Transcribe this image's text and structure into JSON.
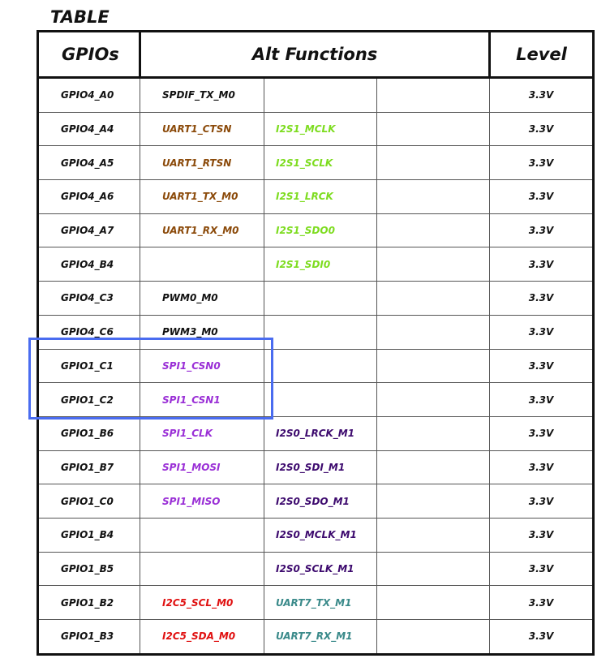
{
  "title": "TABLE",
  "table": {
    "header": [
      "GPIOs",
      "Alt Functions",
      "Level"
    ],
    "rows": [
      {
        "gpio": "GPIO4_A0",
        "alt": [
          {
            "text": "SPDIF_TX_M0",
            "color": "#111111"
          },
          null,
          null
        ],
        "level": "3.3V"
      },
      {
        "gpio": "GPIO4_A4",
        "alt": [
          {
            "text": "UART1_CTSN",
            "color": "#8b4a0a"
          },
          {
            "text": "I2S1_MCLK",
            "color": "#7ddc1f"
          },
          null
        ],
        "level": "3.3V"
      },
      {
        "gpio": "GPIO4_A5",
        "alt": [
          {
            "text": "UART1_RTSN",
            "color": "#8b4a0a"
          },
          {
            "text": "I2S1_SCLK",
            "color": "#7ddc1f"
          },
          null
        ],
        "level": "3.3V"
      },
      {
        "gpio": "GPIO4_A6",
        "alt": [
          {
            "text": "UART1_TX_M0",
            "color": "#8b4a0a"
          },
          {
            "text": "I2S1_LRCK",
            "color": "#7ddc1f"
          },
          null
        ],
        "level": "3.3V"
      },
      {
        "gpio": "GPIO4_A7",
        "alt": [
          {
            "text": "UART1_RX_M0",
            "color": "#8b4a0a"
          },
          {
            "text": "I2S1_SDO0",
            "color": "#7ddc1f"
          },
          null
        ],
        "level": "3.3V"
      },
      {
        "gpio": "GPIO4_B4",
        "alt": [
          null,
          {
            "text": "I2S1_SDI0",
            "color": "#7ddc1f"
          },
          null
        ],
        "level": "3.3V"
      },
      {
        "gpio": "GPIO4_C3",
        "alt": [
          {
            "text": "PWM0_M0",
            "color": "#111111"
          },
          null,
          null
        ],
        "level": "3.3V"
      },
      {
        "gpio": "GPIO4_C6",
        "alt": [
          {
            "text": "PWM3_M0",
            "color": "#111111"
          },
          null,
          null
        ],
        "level": "3.3V"
      },
      {
        "gpio": "GPIO1_C1",
        "alt": [
          {
            "text": "SPI1_CSN0",
            "color": "#9a2fd6"
          },
          null,
          null
        ],
        "level": "3.3V"
      },
      {
        "gpio": "GPIO1_C2",
        "alt": [
          {
            "text": "SPI1_CSN1",
            "color": "#9a2fd6"
          },
          null,
          null
        ],
        "level": "3.3V"
      },
      {
        "gpio": "GPIO1_B6",
        "alt": [
          {
            "text": "SPI1_CLK",
            "color": "#9a2fd6"
          },
          {
            "text": "I2S0_LRCK_M1",
            "color": "#3d0a6e"
          },
          null
        ],
        "level": "3.3V"
      },
      {
        "gpio": "GPIO1_B7",
        "alt": [
          {
            "text": "SPI1_MOSI",
            "color": "#9a2fd6"
          },
          {
            "text": "I2S0_SDI_M1",
            "color": "#3d0a6e"
          },
          null
        ],
        "level": "3.3V"
      },
      {
        "gpio": "GPIO1_C0",
        "alt": [
          {
            "text": "SPI1_MISO",
            "color": "#9a2fd6"
          },
          {
            "text": "I2S0_SDO_M1",
            "color": "#3d0a6e"
          },
          null
        ],
        "level": "3.3V"
      },
      {
        "gpio": "GPIO1_B4",
        "alt": [
          null,
          {
            "text": "I2S0_MCLK_M1",
            "color": "#3d0a6e"
          },
          null
        ],
        "level": "3.3V"
      },
      {
        "gpio": "GPIO1_B5",
        "alt": [
          null,
          {
            "text": "I2S0_SCLK_M1",
            "color": "#3d0a6e"
          },
          null
        ],
        "level": "3.3V"
      },
      {
        "gpio": "GPIO1_B2",
        "alt": [
          {
            "text": "I2C5_SCL_M0",
            "color": "#e01010"
          },
          {
            "text": "UART7_TX_M1",
            "color": "#3a8a8a"
          },
          null
        ],
        "level": "3.3V"
      },
      {
        "gpio": "GPIO1_B3",
        "alt": [
          {
            "text": "I2C5_SDA_M0",
            "color": "#e01010"
          },
          {
            "text": "UART7_RX_M1",
            "color": "#3a8a8a"
          },
          null
        ],
        "level": "3.3V"
      }
    ]
  }
}
